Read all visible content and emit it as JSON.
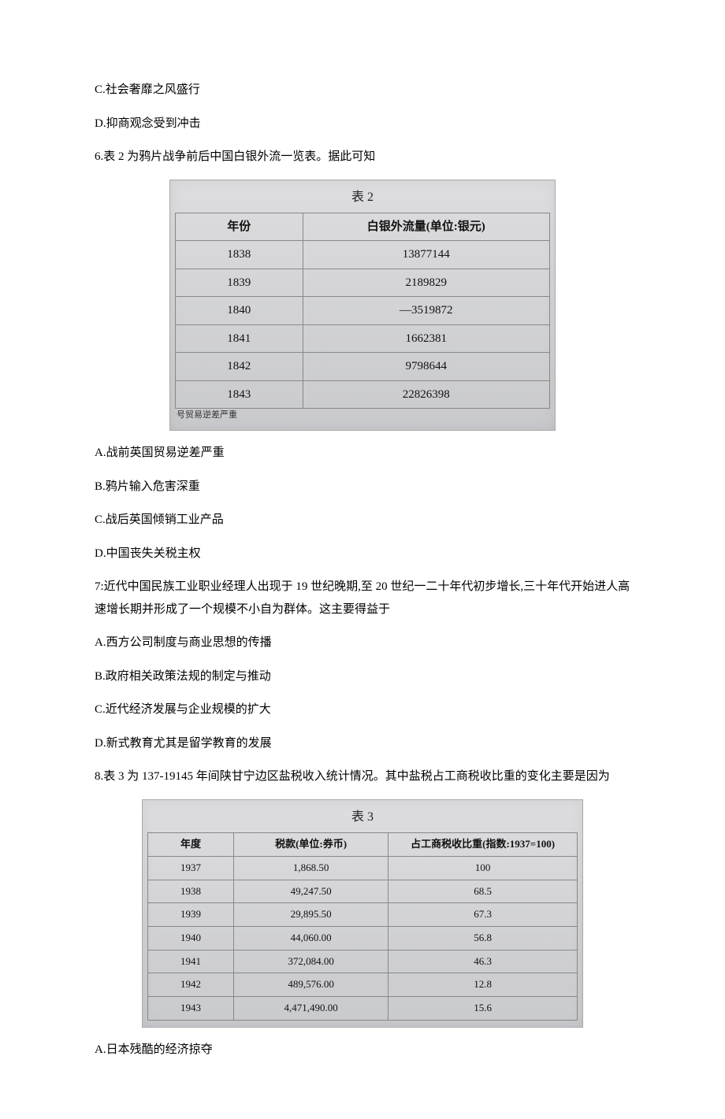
{
  "q5": {
    "optionC": "C.社会奢靡之风盛行",
    "optionD": "D.抑商观念受到冲击"
  },
  "q6": {
    "stem": "6.表 2 为鸦片战争前后中国白银外流一览表。据此可知",
    "table": {
      "caption": "表 2",
      "header_year": "年份",
      "header_value": "白银外流量(单位:银元)",
      "rows": [
        {
          "year": "1838",
          "value": "13877144"
        },
        {
          "year": "1839",
          "value": "2189829"
        },
        {
          "year": "1840",
          "value": "—3519872"
        },
        {
          "year": "1841",
          "value": "1662381"
        },
        {
          "year": "1842",
          "value": "9798644"
        },
        {
          "year": "1843",
          "value": "22826398"
        }
      ],
      "cut_note": "号贸易逆差严重"
    },
    "optionA": "A.战前英国贸易逆差严重",
    "optionB": "B.鸦片输入危害深重",
    "optionC": "C.战后英国倾销工业产品",
    "optionD": "D.中国丧失关税主权"
  },
  "q7": {
    "stem": "7:近代中国民族工业职业经理人出现于 19 世纪晚期,至 20 世纪一二十年代初步增长,三十年代开始进人高速增长期并形成了一个规模不小自为群体。这主要得益于",
    "optionA": "A.西方公司制度与商业思想的传播",
    "optionB": "B.政府相关政策法规的制定与推动",
    "optionC": "C.近代经济发展与企业规模的扩大",
    "optionD": "D.新式教育尤其是留学教育的发展"
  },
  "q8": {
    "stem": "8.表 3 为 137-19145 年间陕甘宁边区盐税收入统计情况。其中盐税占工商税收比重的变化主要是因为",
    "table": {
      "caption": "表 3",
      "header_year": "年度",
      "header_amount": "税款(单位:券币)",
      "header_ratio": "占工商税收比重(指数:1937=100)",
      "rows": [
        {
          "year": "1937",
          "amount": "1,868.50",
          "ratio": "100"
        },
        {
          "year": "1938",
          "amount": "49,247.50",
          "ratio": "68.5"
        },
        {
          "year": "1939",
          "amount": "29,895.50",
          "ratio": "67.3"
        },
        {
          "year": "1940",
          "amount": "44,060.00",
          "ratio": "56.8"
        },
        {
          "year": "1941",
          "amount": "372,084.00",
          "ratio": "46.3"
        },
        {
          "year": "1942",
          "amount": "489,576.00",
          "ratio": "12.8"
        },
        {
          "year": "1943",
          "amount": "4,471,490.00",
          "ratio": "15.6"
        }
      ]
    },
    "optionA": "A.日本残酷的经济掠夺"
  }
}
